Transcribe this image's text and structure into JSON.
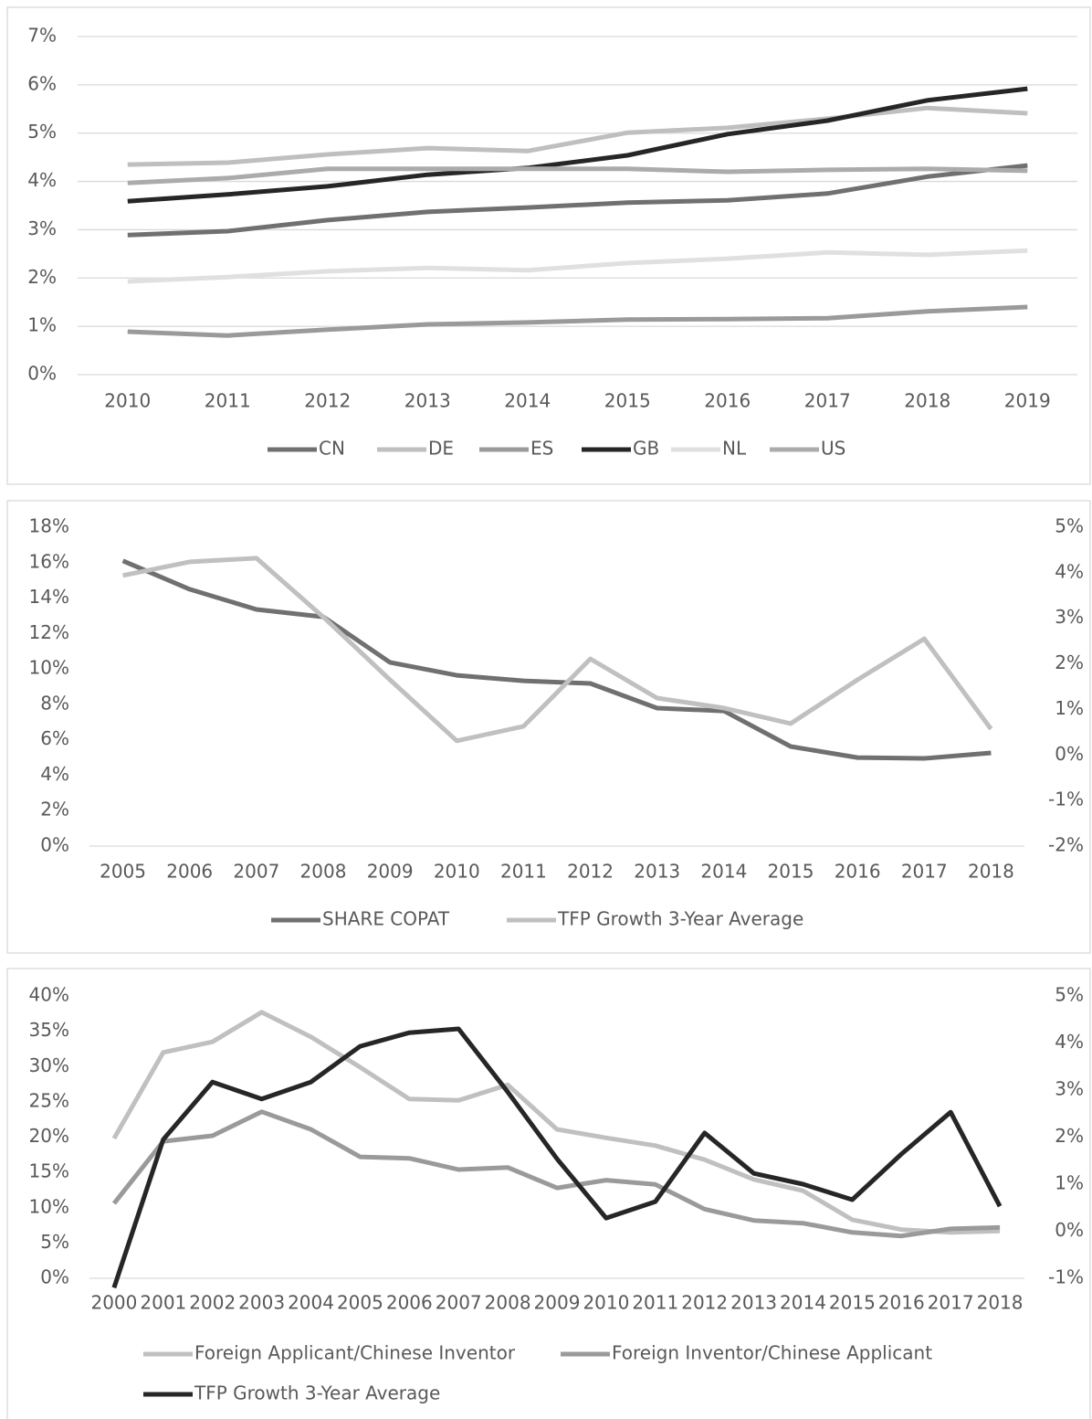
{
  "chart_data": [
    {
      "type": "line",
      "categories": [
        "2010",
        "2011",
        "2012",
        "2013",
        "2014",
        "2015",
        "2016",
        "2017",
        "2018",
        "2019"
      ],
      "ylim": [
        0,
        7
      ],
      "yticks": [
        {
          "value": 0,
          "label": "0%"
        },
        {
          "value": 1,
          "label": "1%"
        },
        {
          "value": 2,
          "label": "2%"
        },
        {
          "value": 3,
          "label": "3%"
        },
        {
          "value": 4,
          "label": "4%"
        },
        {
          "value": 5,
          "label": "5%"
        },
        {
          "value": 6,
          "label": "6%"
        },
        {
          "value": 7,
          "label": "7%"
        }
      ],
      "grid": true,
      "series": [
        {
          "name": "CN",
          "color": "#707070",
          "values": [
            2.89,
            2.97,
            3.2,
            3.37,
            3.46,
            3.56,
            3.61,
            3.75,
            4.1,
            4.33
          ]
        },
        {
          "name": "DE",
          "color": "#bfbfbf",
          "values": [
            4.35,
            4.39,
            4.56,
            4.69,
            4.63,
            5.01,
            5.11,
            5.3,
            5.52,
            5.41
          ]
        },
        {
          "name": "ES",
          "color": "#9a9a9a",
          "values": [
            0.89,
            0.81,
            0.93,
            1.04,
            1.08,
            1.14,
            1.15,
            1.17,
            1.31,
            1.4
          ]
        },
        {
          "name": "GB",
          "color": "#262626",
          "values": [
            3.59,
            3.73,
            3.9,
            4.14,
            4.28,
            4.54,
            4.98,
            5.26,
            5.68,
            5.92
          ]
        },
        {
          "name": "NL",
          "color": "#e0e0e0",
          "values": [
            1.93,
            2.02,
            2.14,
            2.21,
            2.16,
            2.31,
            2.4,
            2.53,
            2.48,
            2.57
          ]
        },
        {
          "name": "US",
          "color": "#ababab",
          "values": [
            3.97,
            4.07,
            4.26,
            4.26,
            4.26,
            4.26,
            4.2,
            4.24,
            4.26,
            4.22
          ]
        }
      ]
    },
    {
      "type": "line",
      "categories": [
        "2005",
        "2006",
        "2007",
        "2008",
        "2009",
        "2010",
        "2011",
        "2012",
        "2013",
        "2014",
        "2015",
        "2016",
        "2017",
        "2018"
      ],
      "ylim": [
        0,
        18
      ],
      "yticks": [
        {
          "value": 0,
          "label": "0%"
        },
        {
          "value": 2,
          "label": "2%"
        },
        {
          "value": 4,
          "label": "4%"
        },
        {
          "value": 6,
          "label": "6%"
        },
        {
          "value": 8,
          "label": "8%"
        },
        {
          "value": 10,
          "label": "10%"
        },
        {
          "value": 12,
          "label": "12%"
        },
        {
          "value": 14,
          "label": "14%"
        },
        {
          "value": 16,
          "label": "16%"
        },
        {
          "value": 18,
          "label": "18%"
        }
      ],
      "y2lim": [
        -2,
        5
      ],
      "y2ticks": [
        {
          "value": -2,
          "label": "-2%"
        },
        {
          "value": -1,
          "label": "-1%"
        },
        {
          "value": 0,
          "label": "0%"
        },
        {
          "value": 1,
          "label": "1%"
        },
        {
          "value": 2,
          "label": "2%"
        },
        {
          "value": 3,
          "label": "3%"
        },
        {
          "value": 4,
          "label": "4%"
        },
        {
          "value": 5,
          "label": "5%"
        }
      ],
      "grid": false,
      "series": [
        {
          "name": "SHARE COPAT",
          "color": "#707070",
          "values": [
            16.1,
            14.5,
            13.36,
            12.94,
            10.37,
            9.64,
            9.33,
            9.18,
            7.79,
            7.63,
            5.62,
            5.0,
            4.95,
            5.26
          ]
        },
        {
          "name": "TFP Growth 3-Year Average",
          "color": "#c0c0c0",
          "axis": "y2",
          "values": [
            3.94,
            4.24,
            4.32,
            3.03,
            1.65,
            0.31,
            0.63,
            2.11,
            1.25,
            1.03,
            0.69,
            1.65,
            2.55,
            0.57
          ]
        }
      ]
    },
    {
      "type": "line",
      "categories": [
        "2000",
        "2001",
        "2002",
        "2003",
        "2004",
        "2005",
        "2006",
        "2007",
        "2008",
        "2009",
        "2010",
        "2011",
        "2012",
        "2013",
        "2014",
        "2015",
        "2016",
        "2017",
        "2018"
      ],
      "ylim": [
        0,
        40
      ],
      "yticks": [
        {
          "value": 0,
          "label": "0%"
        },
        {
          "value": 5,
          "label": "5%"
        },
        {
          "value": 10,
          "label": "10%"
        },
        {
          "value": 15,
          "label": "15%"
        },
        {
          "value": 20,
          "label": "20%"
        },
        {
          "value": 25,
          "label": "25%"
        },
        {
          "value": 30,
          "label": "30%"
        },
        {
          "value": 35,
          "label": "35%"
        },
        {
          "value": 40,
          "label": "40%"
        }
      ],
      "y2lim": [
        -1,
        5
      ],
      "y2ticks": [
        {
          "value": -1,
          "label": "-1%"
        },
        {
          "value": 0,
          "label": "0%"
        },
        {
          "value": 1,
          "label": "1%"
        },
        {
          "value": 2,
          "label": "2%"
        },
        {
          "value": 3,
          "label": "3%"
        },
        {
          "value": 4,
          "label": "4%"
        },
        {
          "value": 5,
          "label": "5%"
        }
      ],
      "grid": false,
      "series": [
        {
          "name": "Foreign Applicant/Chinese Inventor",
          "color": "#c0c0c0",
          "values": [
            19.8,
            32.0,
            33.5,
            37.7,
            34.2,
            29.9,
            25.4,
            25.2,
            27.4,
            21.1,
            19.9,
            18.8,
            16.8,
            14.0,
            12.4,
            8.3,
            6.9,
            6.5,
            6.7
          ]
        },
        {
          "name": "Foreign Inventor/Chinese Applicant",
          "color": "#9a9a9a",
          "values": [
            10.6,
            19.4,
            20.2,
            23.6,
            21.1,
            17.2,
            17.0,
            15.4,
            15.7,
            12.8,
            13.9,
            13.3,
            9.8,
            8.2,
            7.8,
            6.5,
            6.0,
            7.0,
            7.2
          ]
        },
        {
          "name": "TFP Growth 3-Year Average",
          "color": "#262626",
          "axis": "y2",
          "values": [
            -1.2,
            1.95,
            3.17,
            2.81,
            3.17,
            3.93,
            4.22,
            4.3,
            2.96,
            1.54,
            0.28,
            0.63,
            2.09,
            1.23,
            1.0,
            0.67,
            1.64,
            2.53,
            0.53
          ]
        }
      ]
    }
  ]
}
